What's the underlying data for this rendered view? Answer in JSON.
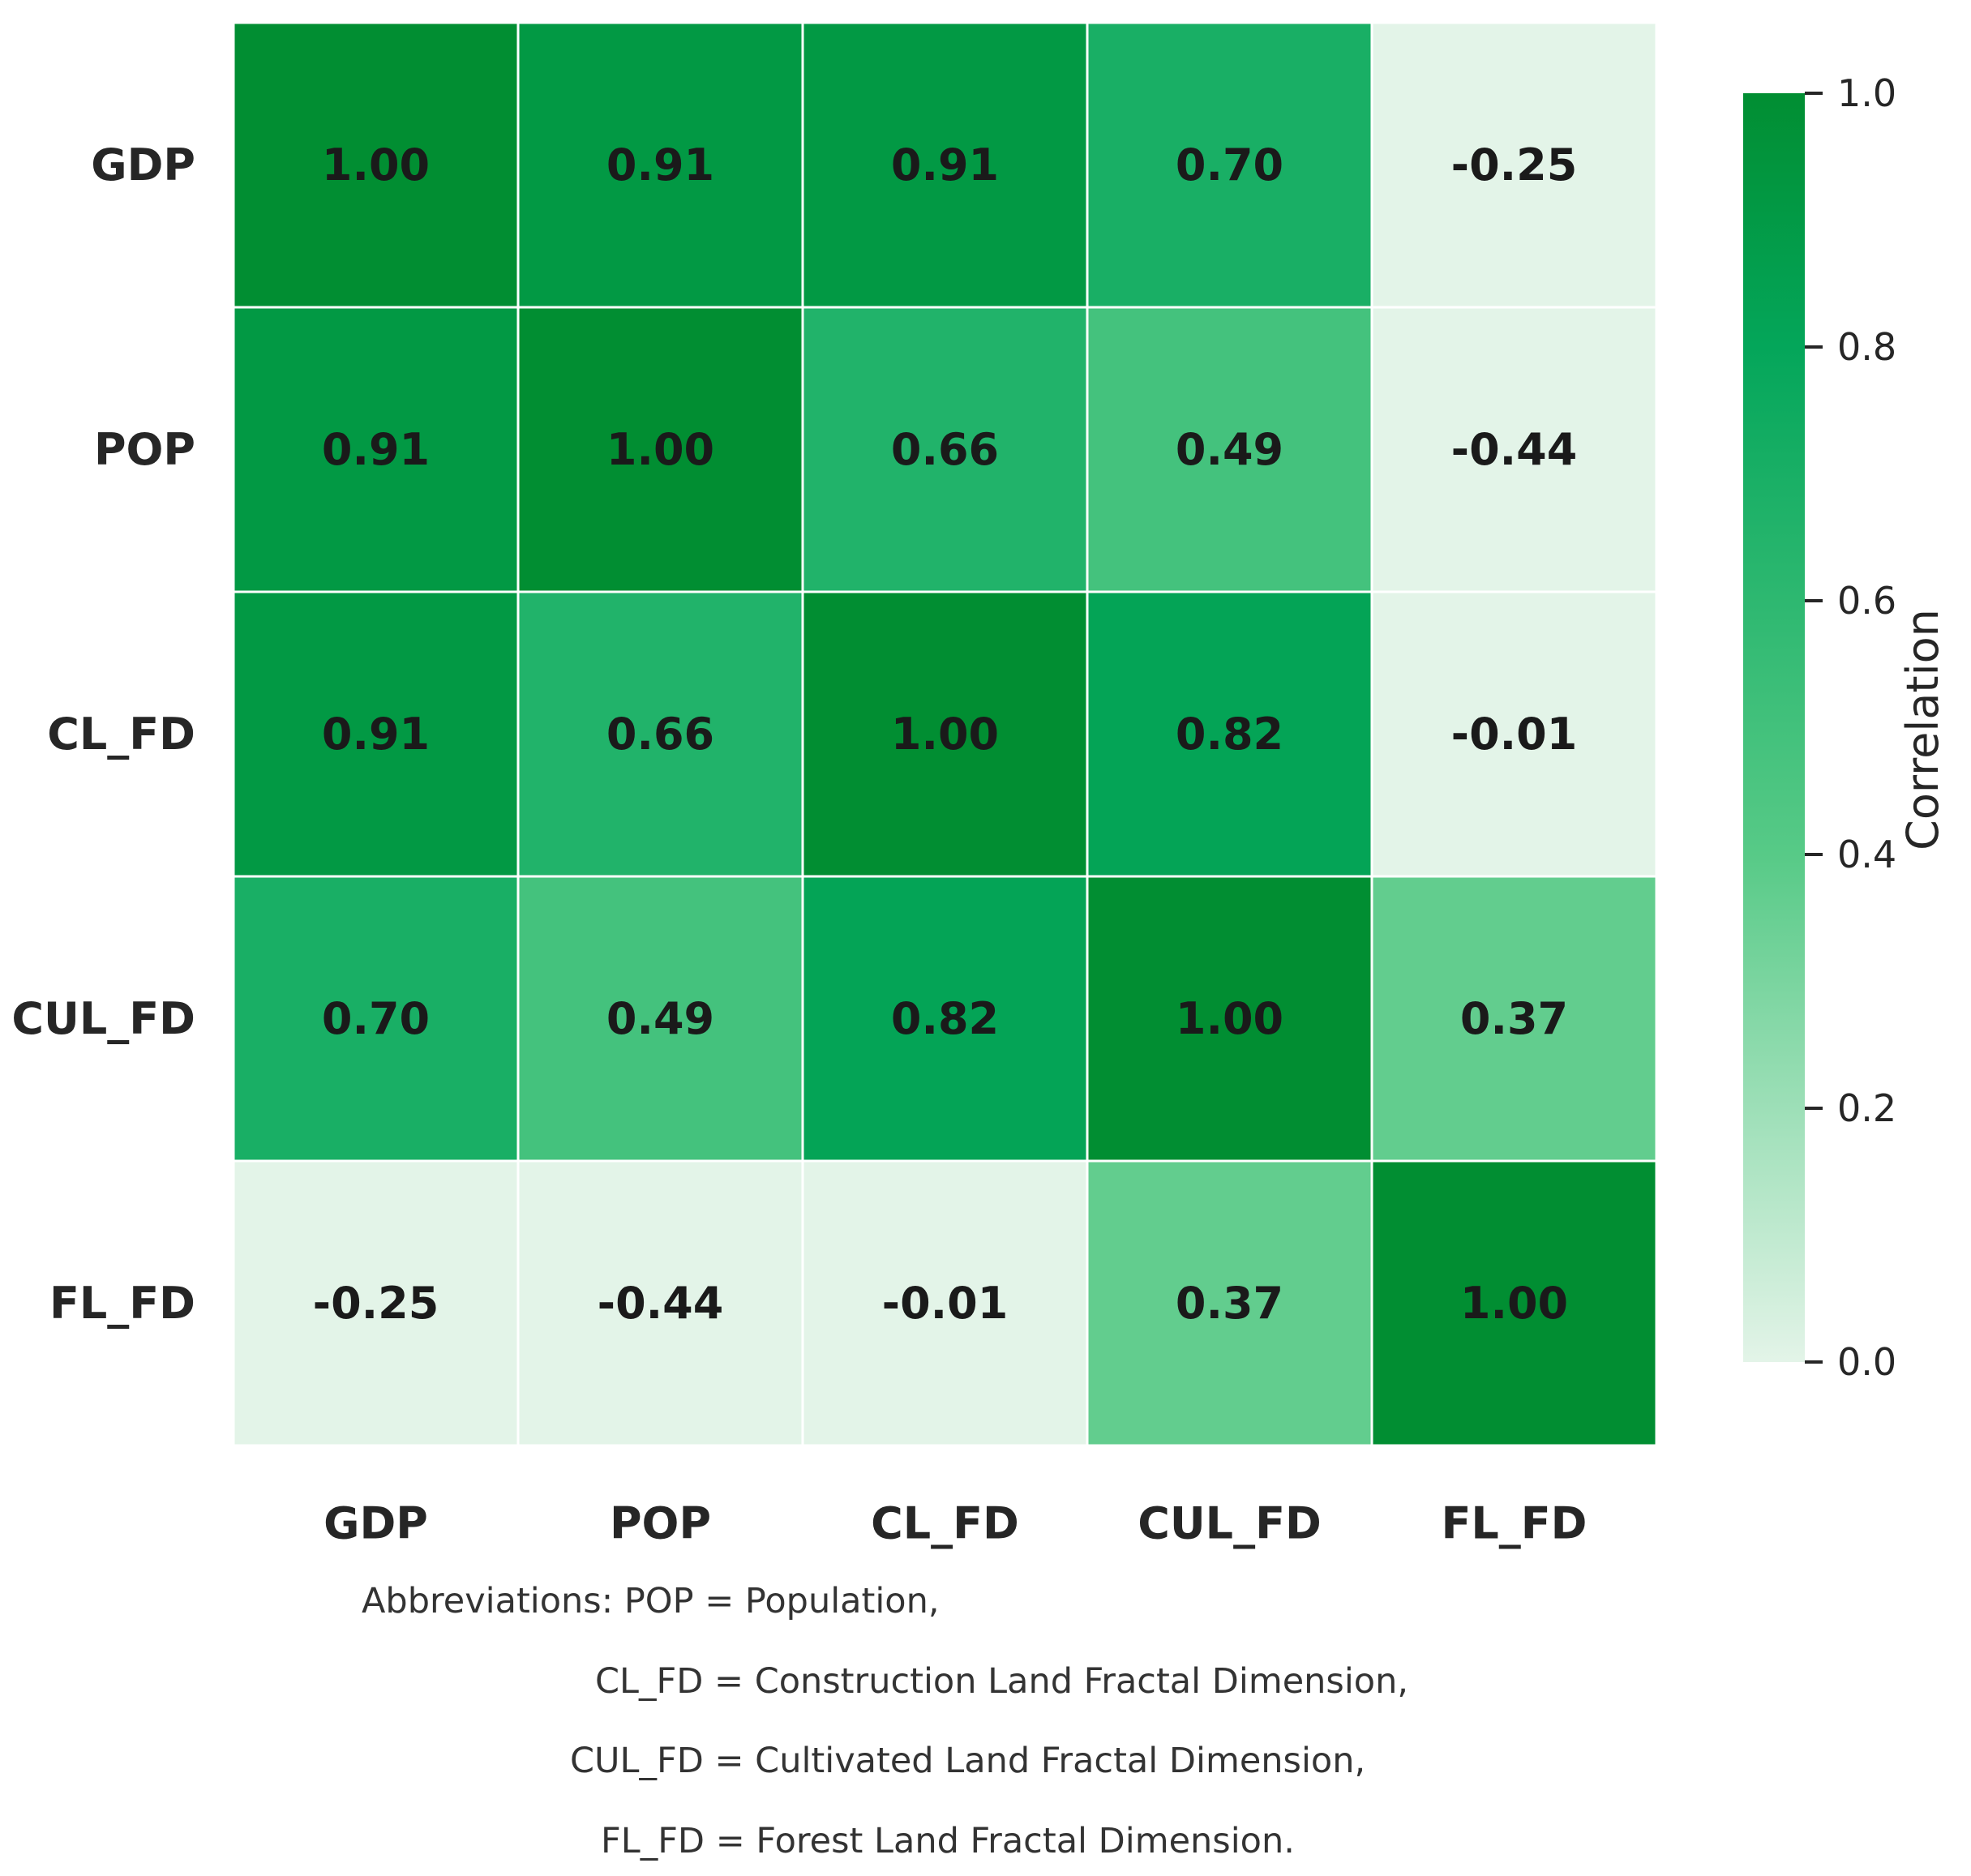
{
  "chart_data": {
    "type": "heatmap",
    "rows": [
      "GDP",
      "POP",
      "CL_FD",
      "CUL_FD",
      "FL_FD"
    ],
    "columns": [
      "GDP",
      "POP",
      "CL_FD",
      "CUL_FD",
      "FL_FD"
    ],
    "values": [
      [
        1.0,
        0.91,
        0.91,
        0.7,
        -0.25
      ],
      [
        0.91,
        1.0,
        0.66,
        0.49,
        -0.44
      ],
      [
        0.91,
        0.66,
        1.0,
        0.82,
        -0.01
      ],
      [
        0.7,
        0.49,
        0.82,
        1.0,
        0.37
      ],
      [
        -0.25,
        -0.44,
        -0.01,
        0.37,
        1.0
      ]
    ],
    "value_labels": [
      [
        "1.00",
        "0.91",
        "0.91",
        "0.70",
        "-0.25"
      ],
      [
        "0.91",
        "1.00",
        "0.66",
        "0.49",
        "-0.44"
      ],
      [
        "0.91",
        "0.66",
        "1.00",
        "0.82",
        "-0.01"
      ],
      [
        "0.70",
        "0.49",
        "0.82",
        "1.00",
        "0.37"
      ],
      [
        "-0.25",
        "-0.44",
        "-0.01",
        "0.37",
        "1.00"
      ]
    ],
    "colorbar": {
      "title": "Correlation",
      "range": [
        0,
        1
      ],
      "ticks": [
        0,
        0.2,
        0.4,
        0.6,
        0.8,
        1
      ],
      "tick_labels": [
        "0.0",
        "0.2",
        "0.4",
        "0.6",
        "0.8",
        "1.0"
      ],
      "colors": {
        "low": "#e3f4e8",
        "mid": "#57ca87",
        "high_mid": "#04a65a",
        "high": "#018e32"
      }
    }
  },
  "notes": {
    "line1": "Abbreviations: POP = Population,",
    "line2": "CL_FD = Construction Land Fractal Dimension,",
    "line3": "CUL_FD = Cultivated Land Fractal Dimension,",
    "line4": "FL_FD = Forest Land Fractal Dimension."
  }
}
